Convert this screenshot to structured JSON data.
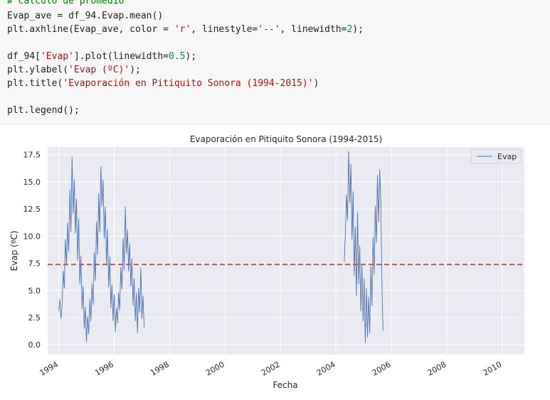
{
  "code": {
    "lines": [
      [
        {
          "t": "# Cálculo de promedio",
          "c": "tk-comment"
        }
      ],
      [
        {
          "t": "Evap_ave = df_94.Evap.mean()"
        }
      ],
      [
        {
          "t": "plt.axhline(Evap_ave, color = "
        },
        {
          "t": "'r'",
          "c": "tk-str"
        },
        {
          "t": ", linestyle="
        },
        {
          "t": "'--'",
          "c": "tk-str"
        },
        {
          "t": ", linewidth="
        },
        {
          "t": "2",
          "c": "tk-num"
        },
        {
          "t": ");"
        }
      ],
      [],
      [
        {
          "t": "df_94["
        },
        {
          "t": "'Evap'",
          "c": "tk-str"
        },
        {
          "t": "].plot(linewidth="
        },
        {
          "t": "0.5",
          "c": "tk-num"
        },
        {
          "t": ");"
        }
      ],
      [
        {
          "t": "plt.ylabel("
        },
        {
          "t": "'Evap (ºC)'",
          "c": "tk-str"
        },
        {
          "t": ");"
        }
      ],
      [
        {
          "t": "plt.title("
        },
        {
          "t": "'Evaporación en Pitiquito Sonora (1994-2015)'",
          "c": "tk-str"
        },
        {
          "t": ")"
        }
      ],
      [],
      [
        {
          "t": "plt.legend();"
        }
      ]
    ]
  },
  "chart_data": {
    "type": "line",
    "title": "Evaporación en Pitiquito Sonora (1994-2015)",
    "xlabel": "Fecha",
    "ylabel": "Evap (ºC)",
    "xlim": [
      1993.6,
      2010.8
    ],
    "ylim": [
      -0.9,
      18.2
    ],
    "x_ticks": [
      1994,
      1996,
      1998,
      2000,
      2002,
      2004,
      2006,
      2008,
      2010
    ],
    "y_ticks": [
      0.0,
      2.5,
      5.0,
      7.5,
      10.0,
      12.5,
      15.0,
      17.5
    ],
    "y_tick_labels": [
      "0.0",
      "2.5",
      "5.0",
      "7.5",
      "10.0",
      "12.5",
      "15.0",
      "17.5"
    ],
    "grid": true,
    "legend_position": "top-right",
    "series": [
      {
        "name": "Evap",
        "color": "#4c72b0",
        "segments": [
          {
            "x": [
              1994.0,
              1994.04,
              1994.08,
              1994.12,
              1994.16,
              1994.2,
              1994.24,
              1994.28,
              1994.32,
              1994.36,
              1994.4,
              1994.44,
              1994.48,
              1994.52,
              1994.56,
              1994.6,
              1994.64,
              1994.68,
              1994.72,
              1994.76,
              1994.8,
              1994.84,
              1994.88,
              1994.92,
              1994.96,
              1995.0,
              1995.04,
              1995.08,
              1995.12,
              1995.16,
              1995.2,
              1995.24,
              1995.28,
              1995.32,
              1995.36,
              1995.4,
              1995.44,
              1995.48,
              1995.52,
              1995.56,
              1995.6,
              1995.64,
              1995.68,
              1995.72,
              1995.76,
              1995.8,
              1995.84,
              1995.88,
              1995.92,
              1995.96,
              1996.0,
              1996.04,
              1996.08,
              1996.12,
              1996.16,
              1996.2,
              1996.24,
              1996.28,
              1996.32,
              1996.36,
              1996.4,
              1996.44,
              1996.48,
              1996.52,
              1996.56,
              1996.6,
              1996.64,
              1996.68,
              1996.72,
              1996.76,
              1996.8,
              1996.84,
              1996.88,
              1996.92,
              1996.96,
              1997.0,
              1997.04,
              1997.08
            ],
            "y": [
              3.1,
              4.2,
              2.4,
              3.6,
              6.8,
              5.2,
              9.7,
              7.4,
              11.2,
              8.6,
              14.3,
              10.4,
              17.3,
              12.1,
              15.2,
              10.3,
              13.4,
              7.8,
              11.6,
              5.6,
              8.2,
              3.3,
              5.4,
              1.5,
              3.5,
              0.3,
              2.6,
              1.0,
              4.2,
              2.2,
              5.6,
              3.7,
              8.5,
              5.9,
              11.3,
              8.3,
              13.9,
              10.4,
              16.4,
              12.8,
              15.2,
              9.8,
              12.7,
              7.5,
              10.6,
              5.3,
              8.1,
              3.4,
              5.5,
              2.2,
              4.6,
              1.2,
              3.4,
              2.0,
              4.8,
              3.2,
              7.1,
              5.1,
              9.8,
              6.9,
              12.7,
              8.4,
              10.6,
              6.8,
              9.3,
              5.4,
              7.9,
              3.6,
              6.1,
              2.2,
              4.8,
              1.1,
              5.2,
              3.0,
              7.1,
              2.4,
              4.5,
              1.6
            ]
          },
          {
            "x": [
              2004.3,
              2004.34,
              2004.38,
              2004.42,
              2004.46,
              2004.5,
              2004.54,
              2004.58,
              2004.62,
              2004.66,
              2004.7,
              2004.74,
              2004.78,
              2004.82,
              2004.86,
              2004.9,
              2004.94,
              2004.98,
              2005.02,
              2005.06,
              2005.1,
              2005.14,
              2005.18,
              2005.22,
              2005.26,
              2005.3,
              2005.34,
              2005.38,
              2005.42,
              2005.46,
              2005.5,
              2005.54,
              2005.58,
              2005.62,
              2005.66,
              2005.7
            ],
            "y": [
              7.6,
              10.2,
              13.8,
              11.5,
              17.8,
              13.1,
              16.6,
              9.7,
              14.1,
              6.4,
              10.8,
              4.5,
              12.2,
              5.6,
              9.1,
              3.1,
              7.3,
              2.2,
              6.1,
              0.2,
              5.2,
              0.7,
              4.4,
              1.1,
              7.2,
              3.6,
              9.9,
              6.5,
              12.8,
              9.4,
              15.6,
              11.3,
              16.1,
              13.2,
              5.6,
              1.3
            ]
          }
        ]
      }
    ],
    "reference_line": {
      "y": 7.4,
      "color": "#c44e52",
      "linestyle": "--"
    }
  }
}
